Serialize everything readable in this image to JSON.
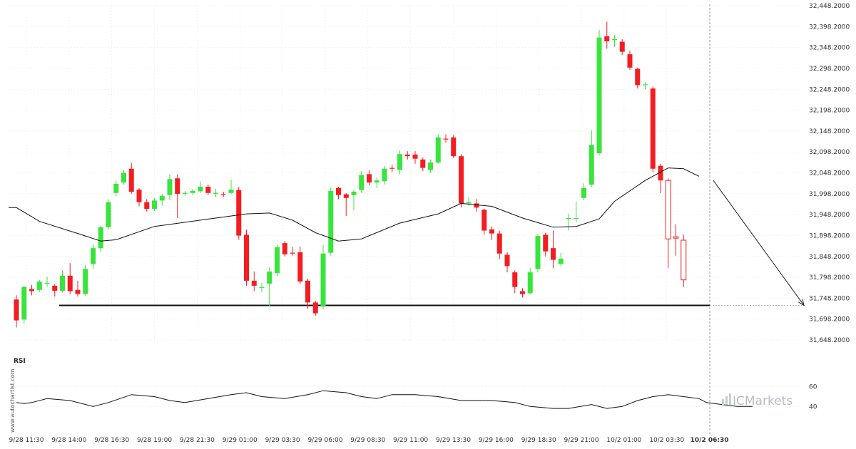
{
  "chart_data": {
    "type": "candlestick",
    "instrument_brand": "ICMarkets",
    "watermark": "www.autochartist.com",
    "y_ticks": [
      "32,448.2000",
      "32,398.2000",
      "32,348.2000",
      "32,298.2000",
      "32,248.2000",
      "32,198.2000",
      "32,148.2000",
      "32,098.2000",
      "32,048.2000",
      "31,998.2000",
      "31,948.2000",
      "31,898.2000",
      "31,848.2000",
      "31,798.2000",
      "31,748.2000",
      "31,698.2000",
      "31,648.2000"
    ],
    "y_tick_values": [
      32448.2,
      32398.2,
      32348.2,
      32298.2,
      32248.2,
      32198.2,
      32148.2,
      32098.2,
      32048.2,
      31998.2,
      31948.2,
      31898.2,
      31848.2,
      31798.2,
      31748.2,
      31698.2,
      31648.2
    ],
    "ylim": [
      31648.2,
      32448.2
    ],
    "x_ticks": [
      "9/28 11:30",
      "9/28 14:00",
      "9/28 16:30",
      "9/28 19:00",
      "9/28 21:30",
      "9/29 01:00",
      "9/29 03:30",
      "9/29 06:00",
      "9/29 08:30",
      "9/29 11:00",
      "9/29 13:30",
      "9/29 16:00",
      "9/29 18:30",
      "9/29 21:00",
      "10/2 01:00",
      "10/2 03:30",
      "10/2 06:30"
    ],
    "current_x_tick": "10/2 06:30",
    "candles": [
      [
        31745,
        31695,
        31755,
        31678
      ],
      [
        31697,
        31775,
        31778,
        31688
      ],
      [
        31770,
        31765,
        31780,
        31755
      ],
      [
        31768,
        31788,
        31792,
        31763
      ],
      [
        31785,
        31785,
        31800,
        31775
      ],
      [
        31778,
        31766,
        31782,
        31752
      ],
      [
        31766,
        31802,
        31815,
        31762
      ],
      [
        31802,
        31765,
        31832,
        31758
      ],
      [
        31768,
        31758,
        31790,
        31752
      ],
      [
        31758,
        31818,
        31828,
        31753
      ],
      [
        31830,
        31868,
        31878,
        31818
      ],
      [
        31868,
        31918,
        31922,
        31858
      ],
      [
        31918,
        31978,
        31985,
        31912
      ],
      [
        32000,
        32022,
        32030,
        31992
      ],
      [
        32025,
        32048,
        32055,
        32020
      ],
      [
        32058,
        32003,
        32072,
        31998
      ],
      [
        32008,
        31978,
        32012,
        31968
      ],
      [
        31978,
        31962,
        31985,
        31955
      ],
      [
        31962,
        31982,
        31988,
        31957
      ],
      [
        31982,
        31993,
        31998,
        31970
      ],
      [
        31995,
        32033,
        32045,
        31982
      ],
      [
        32035,
        31998,
        32045,
        31940
      ],
      [
        31998,
        32000,
        32005,
        31993
      ],
      [
        32000,
        32005,
        32010,
        31995
      ],
      [
        32004,
        32015,
        32028,
        32000
      ],
      [
        32015,
        32000,
        32020,
        31995
      ],
      [
        32000,
        32000,
        32010,
        31990
      ],
      [
        31997,
        31995,
        32003,
        31990
      ],
      [
        32000,
        32008,
        32032,
        31998
      ],
      [
        32007,
        31898,
        32015,
        31888
      ],
      [
        31900,
        31790,
        31912,
        31778
      ],
      [
        31790,
        31778,
        31812,
        31765
      ],
      [
        31775,
        31775,
        31785,
        31762
      ],
      [
        31783,
        31812,
        31822,
        31730
      ],
      [
        31808,
        31870,
        31875,
        31800
      ],
      [
        31880,
        31853,
        31885,
        31848
      ],
      [
        31857,
        31855,
        31870,
        31850
      ],
      [
        31858,
        31788,
        31872,
        31782
      ],
      [
        31790,
        31738,
        31795,
        31723
      ],
      [
        31738,
        31712,
        31742,
        31706
      ],
      [
        31730,
        31855,
        31875,
        31722
      ],
      [
        31857,
        32005,
        32013,
        31850
      ],
      [
        32012,
        31995,
        32015,
        31985
      ],
      [
        31997,
        31988,
        32000,
        31945
      ],
      [
        31995,
        32003,
        32008,
        31958
      ],
      [
        32007,
        32043,
        32052,
        32000
      ],
      [
        32045,
        32025,
        32055,
        32018
      ],
      [
        32025,
        32030,
        32037,
        32012
      ],
      [
        32028,
        32058,
        32065,
        32020
      ],
      [
        32060,
        32058,
        32068,
        32050
      ],
      [
        32055,
        32093,
        32102,
        32045
      ],
      [
        32092,
        32088,
        32100,
        32080
      ],
      [
        32092,
        32082,
        32100,
        32070
      ],
      [
        32080,
        32060,
        32085,
        32052
      ],
      [
        32055,
        32073,
        32080,
        32048
      ],
      [
        32073,
        32133,
        32140,
        32070
      ],
      [
        32130,
        32128,
        32140,
        32120
      ],
      [
        32133,
        32088,
        32138,
        32083
      ],
      [
        32088,
        31975,
        32093,
        31965
      ],
      [
        31975,
        31978,
        31990,
        31970
      ],
      [
        31975,
        31965,
        31985,
        31955
      ],
      [
        31960,
        31910,
        31962,
        31900
      ],
      [
        31913,
        31903,
        31920,
        31888
      ],
      [
        31903,
        31855,
        31910,
        31842
      ],
      [
        31852,
        31825,
        31858,
        31810
      ],
      [
        31810,
        31775,
        31815,
        31760
      ],
      [
        31765,
        31758,
        31772,
        31750
      ],
      [
        31760,
        31810,
        31820,
        31757
      ],
      [
        31818,
        31897,
        31902,
        31810
      ],
      [
        31900,
        31860,
        31905,
        31848
      ],
      [
        31868,
        31840,
        31910,
        31820
      ],
      [
        31830,
        31843,
        31857,
        31824
      ],
      [
        31940,
        31940,
        31950,
        31910
      ],
      [
        31938,
        31940,
        31980,
        31930
      ],
      [
        31988,
        32012,
        32023,
        31983
      ],
      [
        32020,
        32115,
        32150,
        32015
      ],
      [
        32095,
        32372,
        32390,
        32090
      ],
      [
        32375,
        32363,
        32410,
        32345
      ],
      [
        32368,
        32368,
        32378,
        32350
      ],
      [
        32362,
        32338,
        32368,
        32330
      ],
      [
        32332,
        32300,
        32340,
        32295
      ],
      [
        32297,
        32258,
        32300,
        32250
      ],
      [
        32260,
        32260,
        32265,
        32248
      ],
      [
        32250,
        32058,
        32255,
        32050
      ],
      [
        32065,
        32030,
        32070,
        32000
      ]
    ],
    "projection_candles": [
      [
        32030,
        31890,
        32035,
        31820
      ],
      [
        31892,
        31895,
        31925,
        31850
      ],
      [
        31887,
        31792,
        31900,
        31775
      ]
    ],
    "moving_average": [
      [
        0,
        31965
      ],
      [
        3,
        31932
      ],
      [
        8,
        31903
      ],
      [
        11,
        31885
      ],
      [
        13,
        31888
      ],
      [
        18,
        31920
      ],
      [
        24,
        31935
      ],
      [
        30,
        31950
      ],
      [
        33,
        31952
      ],
      [
        36,
        31935
      ],
      [
        39,
        31905
      ],
      [
        42,
        31885
      ],
      [
        45,
        31890
      ],
      [
        50,
        31928
      ],
      [
        55,
        31950
      ],
      [
        58,
        31975
      ],
      [
        62,
        31968
      ],
      [
        66,
        31940
      ],
      [
        70,
        31918
      ],
      [
        73,
        31920
      ],
      [
        76,
        31938
      ],
      [
        78,
        31980
      ],
      [
        82,
        32030
      ],
      [
        85,
        32060
      ],
      [
        87,
        32058
      ],
      [
        89,
        32040
      ]
    ],
    "rsi": [
      [
        0,
        44
      ],
      [
        1,
        43
      ],
      [
        2,
        44
      ],
      [
        4,
        48
      ],
      [
        7,
        46
      ],
      [
        10,
        40
      ],
      [
        12,
        44
      ],
      [
        15,
        52
      ],
      [
        18,
        50
      ],
      [
        20,
        46
      ],
      [
        22,
        44
      ],
      [
        25,
        48
      ],
      [
        28,
        52
      ],
      [
        30,
        54
      ],
      [
        32,
        50
      ],
      [
        35,
        48
      ],
      [
        38,
        52
      ],
      [
        40,
        56
      ],
      [
        43,
        54
      ],
      [
        45,
        50
      ],
      [
        47,
        48
      ],
      [
        49,
        52
      ],
      [
        52,
        52
      ],
      [
        55,
        50
      ],
      [
        58,
        46
      ],
      [
        62,
        46
      ],
      [
        65,
        44
      ],
      [
        67,
        40
      ],
      [
        70,
        38
      ],
      [
        72,
        38
      ],
      [
        75,
        42
      ],
      [
        77,
        38
      ],
      [
        79,
        40
      ],
      [
        81,
        46
      ],
      [
        83,
        50
      ],
      [
        85,
        52
      ],
      [
        87,
        50
      ],
      [
        89,
        48
      ],
      [
        90,
        44
      ],
      [
        92,
        42
      ],
      [
        94,
        40
      ],
      [
        96,
        40
      ]
    ],
    "rsi_label": "RSI",
    "rsi_ticks": [
      "60",
      "40"
    ],
    "rsi_tick_values": [
      60,
      40
    ],
    "rsi_range": [
      20,
      80
    ],
    "support_level": 31731,
    "colors": {
      "up": "#39e43c",
      "down": "#f31d22",
      "projection": "#f31d22",
      "ma": "#111111",
      "support": "#111111",
      "arrow": "#222222",
      "grid": "#dcdcdc"
    }
  }
}
